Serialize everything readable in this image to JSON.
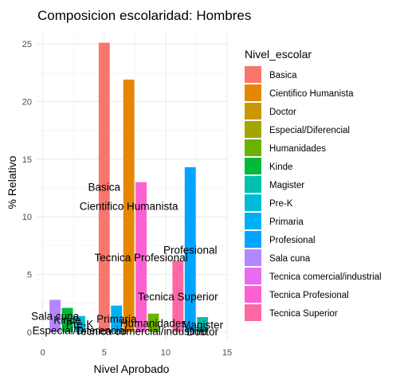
{
  "chart_data": {
    "type": "bar",
    "title": "Composicion escolaridad: Hombres",
    "xlabel": "Nivel Aprobado",
    "ylabel": "% Relativo",
    "xlim": [
      -0.5,
      15
    ],
    "ylim": [
      -0.7,
      25.9
    ],
    "x_ticks": [
      0,
      5,
      10,
      15
    ],
    "y_ticks": [
      0,
      5,
      10,
      15,
      20,
      25
    ],
    "grid": true,
    "legend_title": "Nivel_escolar",
    "legend_position": "right",
    "categories": [
      "Basica",
      "Cientifico Humanista",
      "Doctor",
      "Especial/Diferencial",
      "Humanidades",
      "Kinde",
      "Magister",
      "Pre-K",
      "Primaria",
      "Profesional",
      "Sala cuna",
      "Tecnica comercial/industrial",
      "Tecnica Profesional",
      "Tecnica Superior"
    ],
    "colors": [
      "#F8766D",
      "#E58700",
      "#C99800",
      "#A3A500",
      "#6BB100",
      "#00BA38",
      "#00C0AF",
      "#00BCD8",
      "#00B0F6",
      "#00A5FF",
      "#B385FF",
      "#E76BF3",
      "#FD61D1",
      "#FF67A4"
    ],
    "x": [
      5,
      7,
      13,
      3,
      9,
      2,
      13,
      3,
      6,
      12,
      1,
      8,
      8,
      11
    ],
    "values": [
      25.1,
      21.9,
      0.1,
      0.3,
      1.6,
      2.1,
      1.3,
      1.4,
      2.3,
      14.3,
      2.8,
      0.2,
      13.0,
      6.2
    ],
    "bar_labels": [
      {
        "text": "Basica",
        "x": 5,
        "y": 12.6
      },
      {
        "text": "Cientifico Humanista",
        "x": 7,
        "y": 10.95
      },
      {
        "text": "Doctor",
        "x": 13,
        "y": 0.05
      },
      {
        "text": "Especial/Diferencial",
        "x": 3,
        "y": 0.15
      },
      {
        "text": "Humanidades",
        "x": 9,
        "y": 0.8
      },
      {
        "text": "Kinde",
        "x": 2,
        "y": 1.05
      },
      {
        "text": "Magister",
        "x": 13,
        "y": 0.65
      },
      {
        "text": "Pre-K",
        "x": 3,
        "y": 0.7
      },
      {
        "text": "Primaria",
        "x": 6,
        "y": 1.15
      },
      {
        "text": "Profesional",
        "x": 12,
        "y": 7.15
      },
      {
        "text": "Sala cuna",
        "x": 1,
        "y": 1.4
      },
      {
        "text": "Tecnica comercial/industrial",
        "x": 8,
        "y": 0.1
      },
      {
        "text": "Tecnica Profesional",
        "x": 8,
        "y": 6.5
      },
      {
        "text": "Tecnica Superior",
        "x": 11,
        "y": 3.1
      }
    ]
  }
}
